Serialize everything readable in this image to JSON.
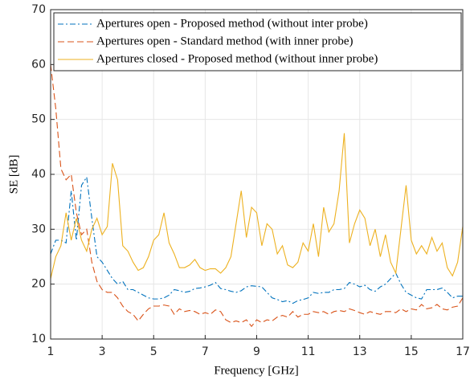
{
  "chart_data": {
    "type": "line",
    "xlabel": "Frequency [GHz]",
    "ylabel": "SE [dB]",
    "x": [
      1.0,
      1.2,
      1.4,
      1.6,
      1.8,
      2.0,
      2.2,
      2.4,
      2.6,
      2.8,
      3.0,
      3.2,
      3.4,
      3.6,
      3.8,
      4.0,
      4.2,
      4.4,
      4.6,
      4.8,
      5.0,
      5.2,
      5.4,
      5.6,
      5.8,
      6.0,
      6.2,
      6.4,
      6.6,
      6.8,
      7.0,
      7.2,
      7.4,
      7.6,
      7.8,
      8.0,
      8.2,
      8.4,
      8.6,
      8.8,
      9.0,
      9.2,
      9.4,
      9.6,
      9.8,
      10.0,
      10.2,
      10.4,
      10.6,
      10.8,
      11.0,
      11.2,
      11.4,
      11.6,
      11.8,
      12.0,
      12.2,
      12.4,
      12.6,
      12.8,
      13.0,
      13.2,
      13.4,
      13.6,
      13.8,
      14.0,
      14.2,
      14.4,
      14.6,
      14.8,
      15.0,
      15.2,
      15.4,
      15.6,
      15.8,
      16.0,
      16.2,
      16.4,
      16.6,
      16.8,
      17.0
    ],
    "series": [
      {
        "name": "Apertures open - Proposed method (without inter probe)",
        "color": "#0072bd",
        "dash": "dashdot",
        "values": [
          25.5,
          28,
          28,
          27.5,
          37,
          28,
          38,
          39.5,
          32,
          25,
          24,
          22.5,
          21,
          20,
          20.5,
          19,
          19,
          18.5,
          18,
          17.5,
          17.3,
          17.3,
          17.5,
          18,
          19,
          18.8,
          18.5,
          18.7,
          19.2,
          19.3,
          19.5,
          19.8,
          20.3,
          19.2,
          19,
          18.7,
          18.5,
          18.8,
          19.5,
          19.7,
          19.6,
          19.5,
          18.5,
          17.5,
          17.2,
          16.8,
          17,
          16.5,
          17,
          17.2,
          17.5,
          18.5,
          18.3,
          18.5,
          18.5,
          19,
          19,
          19.2,
          20.3,
          20,
          19.5,
          19.8,
          19,
          18.7,
          19.5,
          20,
          21,
          22,
          20,
          18.5,
          18,
          17.5,
          17.3,
          19,
          19,
          19,
          19.3,
          18.5,
          17.5,
          17.8,
          17.8
        ]
      },
      {
        "name": "Apertures open - Standard method (with inner probe)",
        "color": "#d95319",
        "dash": "dashed",
        "values": [
          60,
          52,
          41,
          39,
          40,
          33,
          29,
          30,
          24,
          20.5,
          19,
          18.5,
          18.5,
          17.5,
          16,
          15,
          14.5,
          13.3,
          14.5,
          15.5,
          16,
          16,
          16.2,
          16,
          14.5,
          15.5,
          15,
          15.2,
          15,
          14.5,
          14.8,
          14.5,
          15.3,
          15,
          13.5,
          13,
          13.3,
          13,
          13.5,
          12.3,
          13.5,
          13,
          13.5,
          13.3,
          14,
          14.3,
          14,
          15,
          14,
          14.5,
          14.5,
          15,
          14.8,
          15,
          14.5,
          15,
          15.2,
          15,
          15.5,
          15.2,
          14.8,
          14.5,
          15,
          14.7,
          14.5,
          15,
          15,
          14.8,
          15.5,
          15,
          15.5,
          15.3,
          16.3,
          15.5,
          15.7,
          16.3,
          15.5,
          15.3,
          15.8,
          16,
          17.5
        ]
      },
      {
        "name": "Apertures closed - Proposed method (without inner probe)",
        "color": "#edb120",
        "dash": "solid",
        "values": [
          21,
          25,
          27,
          33,
          28,
          32,
          28,
          26,
          30,
          32,
          29,
          30.5,
          42,
          39,
          27,
          26,
          24,
          22.5,
          23,
          25,
          28,
          29,
          33,
          27.5,
          25.5,
          23,
          23,
          23.5,
          24.5,
          23,
          22.5,
          22.8,
          22.8,
          22,
          23,
          25,
          31,
          37,
          28.5,
          34,
          33,
          27,
          31,
          30,
          25.5,
          27,
          23.5,
          23,
          24,
          27.5,
          26,
          31,
          25,
          34,
          29.5,
          31,
          37,
          47.5,
          27.5,
          31,
          33.5,
          32,
          27,
          30,
          25,
          29,
          24,
          22,
          30,
          38,
          28,
          25.5,
          27,
          25.5,
          28.5,
          26,
          27.5,
          23,
          21.5,
          24,
          30.5
        ]
      }
    ],
    "xlim": [
      1,
      17
    ],
    "xticks": [
      1,
      3,
      5,
      7,
      9,
      11,
      13,
      15,
      17
    ],
    "ylim": [
      10,
      70
    ],
    "yticks": [
      10,
      20,
      30,
      40,
      50,
      60,
      70
    ],
    "grid": true,
    "legend": "upper left"
  }
}
